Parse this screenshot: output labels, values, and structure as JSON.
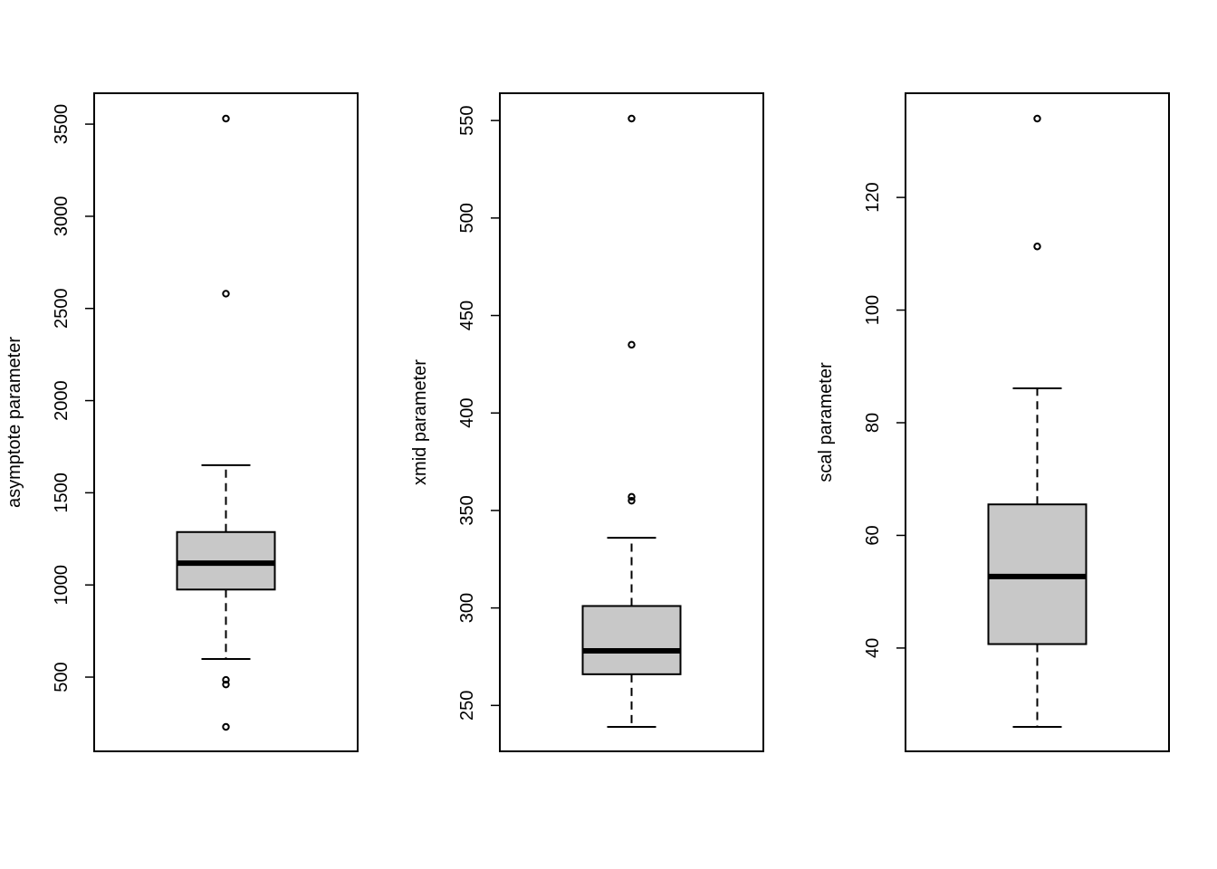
{
  "colors": {
    "box_fill": "#c8c8c8",
    "ink": "#000000",
    "background": "#ffffff"
  },
  "chart_data": [
    {
      "type": "boxplot",
      "ylabel": "asymptote parameter",
      "ylim": [
        230,
        3530
      ],
      "yticks": [
        500,
        1000,
        1500,
        2000,
        2500,
        3000,
        3500
      ],
      "box": {
        "min": 598,
        "q1": 975,
        "median": 1118,
        "q3": 1287,
        "max": 1650
      },
      "outliers": [
        3530,
        2580,
        485,
        460,
        230
      ],
      "grid": false
    },
    {
      "type": "boxplot",
      "ylabel": "xmid parameter",
      "ylim": [
        239,
        551
      ],
      "yticks": [
        250,
        300,
        350,
        400,
        450,
        500,
        550
      ],
      "box": {
        "min": 239,
        "q1": 266,
        "median": 278,
        "q3": 301,
        "max": 336
      },
      "outliers": [
        551,
        435,
        357,
        355
      ],
      "grid": false
    },
    {
      "type": "boxplot",
      "ylabel": "scal parameter",
      "ylim": [
        26,
        134
      ],
      "yticks": [
        40,
        60,
        80,
        100,
        120
      ],
      "box": {
        "min": 26,
        "q1": 40.7,
        "median": 52.7,
        "q3": 65.5,
        "max": 86.1
      },
      "outliers": [
        134,
        111.3
      ],
      "grid": false
    }
  ]
}
